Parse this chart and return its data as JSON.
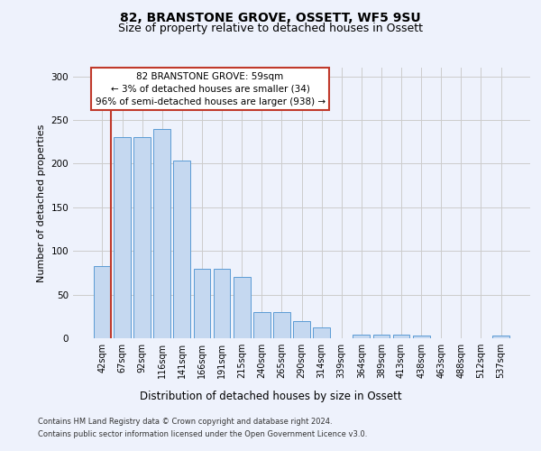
{
  "title1": "82, BRANSTONE GROVE, OSSETT, WF5 9SU",
  "title2": "Size of property relative to detached houses in Ossett",
  "xlabel": "Distribution of detached houses by size in Ossett",
  "ylabel": "Number of detached properties",
  "categories": [
    "42sqm",
    "67sqm",
    "92sqm",
    "116sqm",
    "141sqm",
    "166sqm",
    "191sqm",
    "215sqm",
    "240sqm",
    "265sqm",
    "290sqm",
    "314sqm",
    "339sqm",
    "364sqm",
    "389sqm",
    "413sqm",
    "438sqm",
    "463sqm",
    "488sqm",
    "512sqm",
    "537sqm"
  ],
  "values": [
    83,
    230,
    230,
    240,
    204,
    80,
    80,
    70,
    30,
    30,
    20,
    12,
    0,
    4,
    4,
    4,
    3,
    0,
    0,
    0,
    3
  ],
  "bar_color": "#c5d8f0",
  "bar_edge_color": "#5b9bd5",
  "vline_color": "#c0392b",
  "annotation_text": "82 BRANSTONE GROVE: 59sqm\n← 3% of detached houses are smaller (34)\n96% of semi-detached houses are larger (938) →",
  "annotation_box_color": "#ffffff",
  "annotation_box_edge": "#c0392b",
  "ylim": [
    0,
    310
  ],
  "yticks": [
    0,
    50,
    100,
    150,
    200,
    250,
    300
  ],
  "footer1": "Contains HM Land Registry data © Crown copyright and database right 2024.",
  "footer2": "Contains public sector information licensed under the Open Government Licence v3.0.",
  "bg_color": "#eef2fc",
  "plot_bg_color": "#eef2fc",
  "title1_fontsize": 10,
  "title2_fontsize": 9,
  "ylabel_fontsize": 8,
  "xlabel_fontsize": 8.5,
  "tick_fontsize": 7,
  "footer_fontsize": 6,
  "annot_fontsize": 7.5
}
